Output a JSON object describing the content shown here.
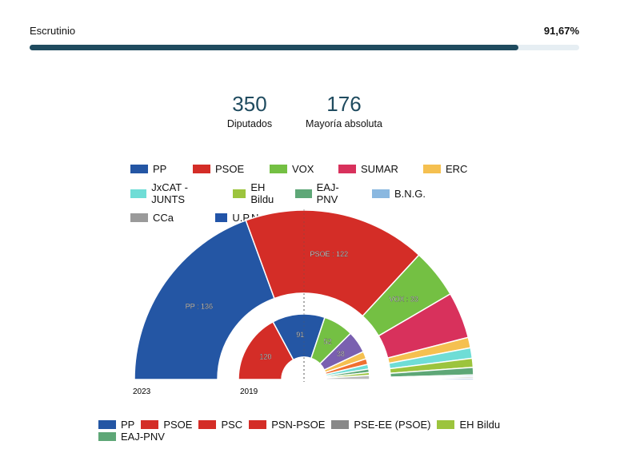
{
  "progress": {
    "label": "Escrutinio",
    "value_text": "91,67%",
    "value": 91.67
  },
  "stats": [
    {
      "value": "350",
      "label": "Diputados"
    },
    {
      "value": "176",
      "label": "Mayoría absoluta"
    }
  ],
  "legend_top": [
    {
      "name": "PP",
      "color": "#2456a4"
    },
    {
      "name": "PSOE",
      "color": "#d42d27"
    },
    {
      "name": "VOX",
      "color": "#74c043"
    },
    {
      "name": "SUMAR",
      "color": "#d8315c"
    },
    {
      "name": "ERC",
      "color": "#f5c050"
    },
    {
      "name": "JxCAT - JUNTS",
      "color": "#6fddd6"
    },
    {
      "name": "EH Bildu",
      "color": "#9cc43d"
    },
    {
      "name": "EAJ-PNV",
      "color": "#5ea777"
    },
    {
      "name": "B.N.G.",
      "color": "#8ab8e0"
    },
    {
      "name": "CCa",
      "color": "#9a9a9a"
    },
    {
      "name": "U.P.N.",
      "color": "#2254a8"
    }
  ],
  "legend_bottom": [
    {
      "name": "PP",
      "color": "#2456a4"
    },
    {
      "name": "PSOE",
      "color": "#d42d27"
    },
    {
      "name": "PSC",
      "color": "#d42d27"
    },
    {
      "name": "PSN-PSOE",
      "color": "#d42d27"
    },
    {
      "name": "PSE-EE (PSOE)",
      "color": "#888888"
    },
    {
      "name": "EH Bildu",
      "color": "#9cc43d"
    },
    {
      "name": "EAJ-PNV",
      "color": "#5ea777"
    }
  ],
  "chart_data": [
    {
      "type": "pie",
      "variant": "half-donut parliament",
      "label": "2023",
      "total": 350,
      "slices": [
        {
          "party": "PP",
          "value": 136,
          "label": "PP : 136",
          "color": "#2456a4"
        },
        {
          "party": "PSOE",
          "value": 122,
          "label": "PSOE : 122",
          "color": "#d42d27"
        },
        {
          "party": "VOX",
          "value": 33,
          "label": "VOX : 33",
          "color": "#74c043"
        },
        {
          "party": "SUMAR",
          "value": 31,
          "color": "#d8315c"
        },
        {
          "party": "ERC",
          "value": 7,
          "color": "#f5c050"
        },
        {
          "party": "JxCAT - JUNTS",
          "value": 7,
          "color": "#6fddd6"
        },
        {
          "party": "EH Bildu",
          "value": 6,
          "color": "#9cc43d"
        },
        {
          "party": "EAJ-PNV",
          "value": 5,
          "color": "#5ea777"
        },
        {
          "party": "B.N.G.",
          "value": 1,
          "color": "#8ab8e0"
        },
        {
          "party": "CCa",
          "value": 1,
          "color": "#9a9a9a"
        },
        {
          "party": "U.P.N.",
          "value": 1,
          "color": "#2254a8"
        }
      ]
    },
    {
      "type": "pie",
      "variant": "half-donut parliament",
      "label": "2019",
      "total": 350,
      "slices": [
        {
          "value": 120,
          "label": "120",
          "color": "#d42d27"
        },
        {
          "value": 91,
          "label": "91",
          "color": "#2456a4"
        },
        {
          "value": 52,
          "label": "52",
          "color": "#74c043"
        },
        {
          "value": 38,
          "label": "38",
          "color": "#7a60b0"
        },
        {
          "value": 13,
          "color": "#f5c050"
        },
        {
          "value": 10,
          "color": "#f07030"
        },
        {
          "value": 8,
          "color": "#6fddd6"
        },
        {
          "value": 6,
          "color": "#5ea777"
        },
        {
          "value": 5,
          "color": "#9cc43d"
        },
        {
          "value": 7,
          "color": "#bbbbbb"
        }
      ]
    }
  ]
}
